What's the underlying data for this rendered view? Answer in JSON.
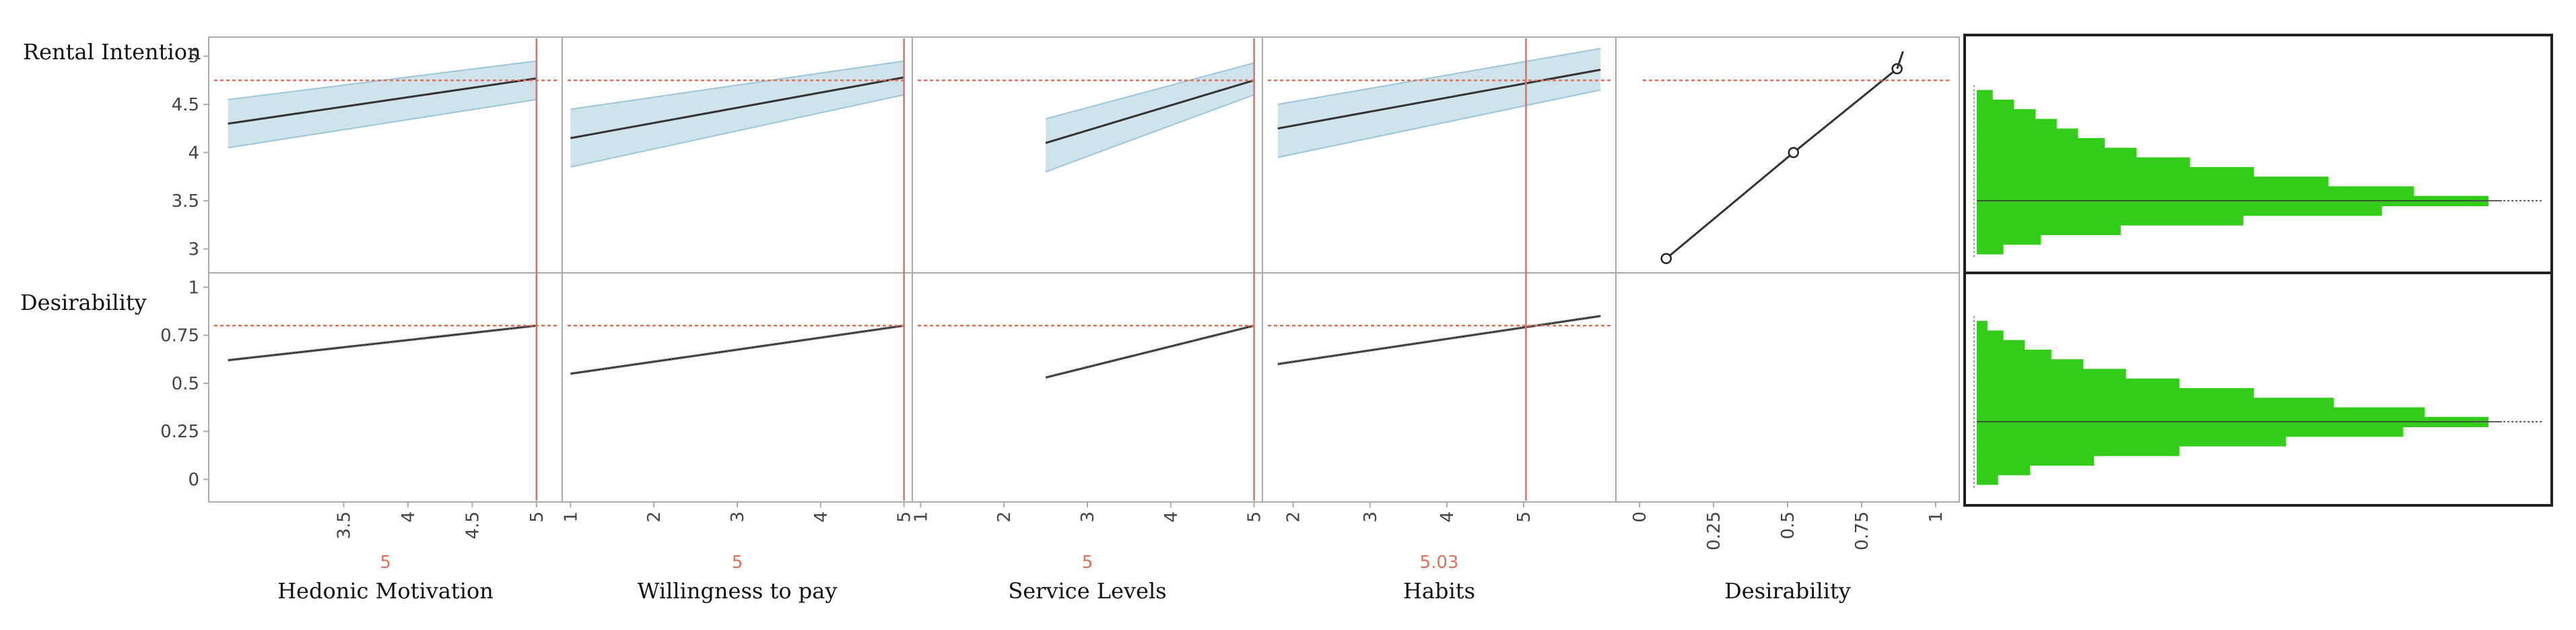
{
  "colors": {
    "current_marker": "#e0705a",
    "ci_band": "#cfe3ec",
    "ci_edge": "#9cc6d8",
    "trend_line": "#333333",
    "histogram": "#33cc1a",
    "frame": "#222222",
    "cell_border": "#aaaaaa",
    "axis_text": "#444444"
  },
  "row_labels": [
    "Rental Intention",
    "Desirability"
  ],
  "chart_data": {
    "type": "line",
    "title": "",
    "responses": [
      {
        "name": "Rental Intention",
        "current": 4.75,
        "ylim": [
          2.8,
          5.15
        ],
        "yticks": [
          3,
          3.5,
          4,
          4.5,
          5
        ],
        "ytick_labels": [
          "3",
          "3.5",
          "4",
          "4.5",
          "5"
        ]
      },
      {
        "name": "Desirability",
        "current": 0.8,
        "ylim": [
          -0.1,
          1.05
        ],
        "yticks": [
          0,
          0.25,
          0.5,
          0.75,
          1
        ],
        "ytick_labels": [
          "0",
          "0.25",
          "0.5",
          "0.75",
          "1"
        ]
      }
    ],
    "factors": [
      {
        "name": "Hedonic Motivation",
        "current_label": "5",
        "current": 5,
        "xlim": [
          2.45,
          5.2
        ],
        "xticks": [
          3.5,
          4,
          4.5,
          5
        ],
        "xtick_labels": [
          "3.5",
          "4",
          "4.5",
          "5"
        ],
        "series": [
          {
            "name": "Rental Intention",
            "x": [
              2.6,
              5.0
            ],
            "y": [
              4.3,
              4.77
            ],
            "lower": [
              4.05,
              4.55
            ],
            "upper": [
              4.55,
              4.95
            ]
          },
          {
            "name": "Desirability",
            "x": [
              2.6,
              5.0
            ],
            "y": [
              0.62,
              0.8
            ]
          }
        ]
      },
      {
        "name": "Willingness to pay",
        "current_label": "5",
        "current": 5,
        "xlim": [
          0.9,
          5.1
        ],
        "xticks": [
          1,
          2,
          3,
          4,
          5
        ],
        "xtick_labels": [
          "1",
          "2",
          "3",
          "4",
          "5"
        ],
        "series": [
          {
            "name": "Rental Intention",
            "x": [
              1.0,
              5.0
            ],
            "y": [
              4.15,
              4.78
            ],
            "lower": [
              3.85,
              4.6
            ],
            "upper": [
              4.45,
              4.95
            ]
          },
          {
            "name": "Desirability",
            "x": [
              1.0,
              5.0
            ],
            "y": [
              0.55,
              0.8
            ]
          }
        ]
      },
      {
        "name": "Service Levels",
        "current_label": "5",
        "current": 5,
        "xlim": [
          0.9,
          5.1
        ],
        "xticks": [
          1,
          2,
          3,
          4,
          5
        ],
        "xtick_labels": [
          "1",
          "2",
          "3",
          "4",
          "5"
        ],
        "series": [
          {
            "name": "Rental Intention",
            "x": [
              2.5,
              5.0
            ],
            "y": [
              4.1,
              4.75
            ],
            "lower": [
              3.8,
              4.6
            ],
            "upper": [
              4.35,
              4.93
            ]
          },
          {
            "name": "Desirability",
            "x": [
              2.5,
              5.0
            ],
            "y": [
              0.53,
              0.8
            ]
          }
        ]
      },
      {
        "name": "Habits",
        "current_label": "5.03",
        "current": 5.03,
        "xlim": [
          1.6,
          6.2
        ],
        "xticks": [
          2,
          3,
          4,
          5
        ],
        "xtick_labels": [
          "2",
          "3",
          "4",
          "5"
        ],
        "series": [
          {
            "name": "Rental Intention",
            "x": [
              1.8,
              6.0
            ],
            "y": [
              4.25,
              4.86
            ],
            "lower": [
              3.95,
              4.65
            ],
            "upper": [
              4.5,
              5.08
            ]
          },
          {
            "name": "Desirability",
            "x": [
              1.8,
              6.0
            ],
            "y": [
              0.6,
              0.85
            ]
          }
        ]
      },
      {
        "name": "Desirability",
        "current_label": "",
        "current": 0.8,
        "xlim": [
          -0.08,
          1.08
        ],
        "xticks": [
          0,
          0.25,
          0.5,
          0.75,
          1
        ],
        "xtick_labels": [
          "0",
          "0.25",
          "0.5",
          "0.75",
          "1"
        ],
        "series": [
          {
            "name": "Rental Intention",
            "x": [
              0.09,
              0.52,
              0.87
            ],
            "y": [
              2.9,
              4.0,
              4.87
            ],
            "markers": true
          }
        ]
      }
    ],
    "histograms": [
      {
        "name": "Rental Intention",
        "bins_y": [
          4.6,
          4.5,
          4.4,
          4.3,
          4.2,
          4.1,
          4.0,
          3.9,
          3.8,
          3.7,
          3.6,
          3.5,
          3.4,
          3.3,
          3.2,
          3.1,
          3.0
        ],
        "counts": [
          3,
          7,
          11,
          15,
          19,
          24,
          30,
          40,
          52,
          66,
          82,
          96,
          76,
          50,
          27,
          12,
          5
        ],
        "mean": 3.5
      },
      {
        "name": "Desirability",
        "bins_y": [
          0.8,
          0.75,
          0.7,
          0.65,
          0.6,
          0.55,
          0.5,
          0.45,
          0.4,
          0.35,
          0.3,
          0.25,
          0.2,
          0.15,
          0.1,
          0.05,
          0.0
        ],
        "counts": [
          2,
          5,
          9,
          14,
          20,
          28,
          38,
          52,
          67,
          84,
          96,
          80,
          58,
          38,
          22,
          10,
          4
        ],
        "mean": 0.3
      }
    ]
  }
}
